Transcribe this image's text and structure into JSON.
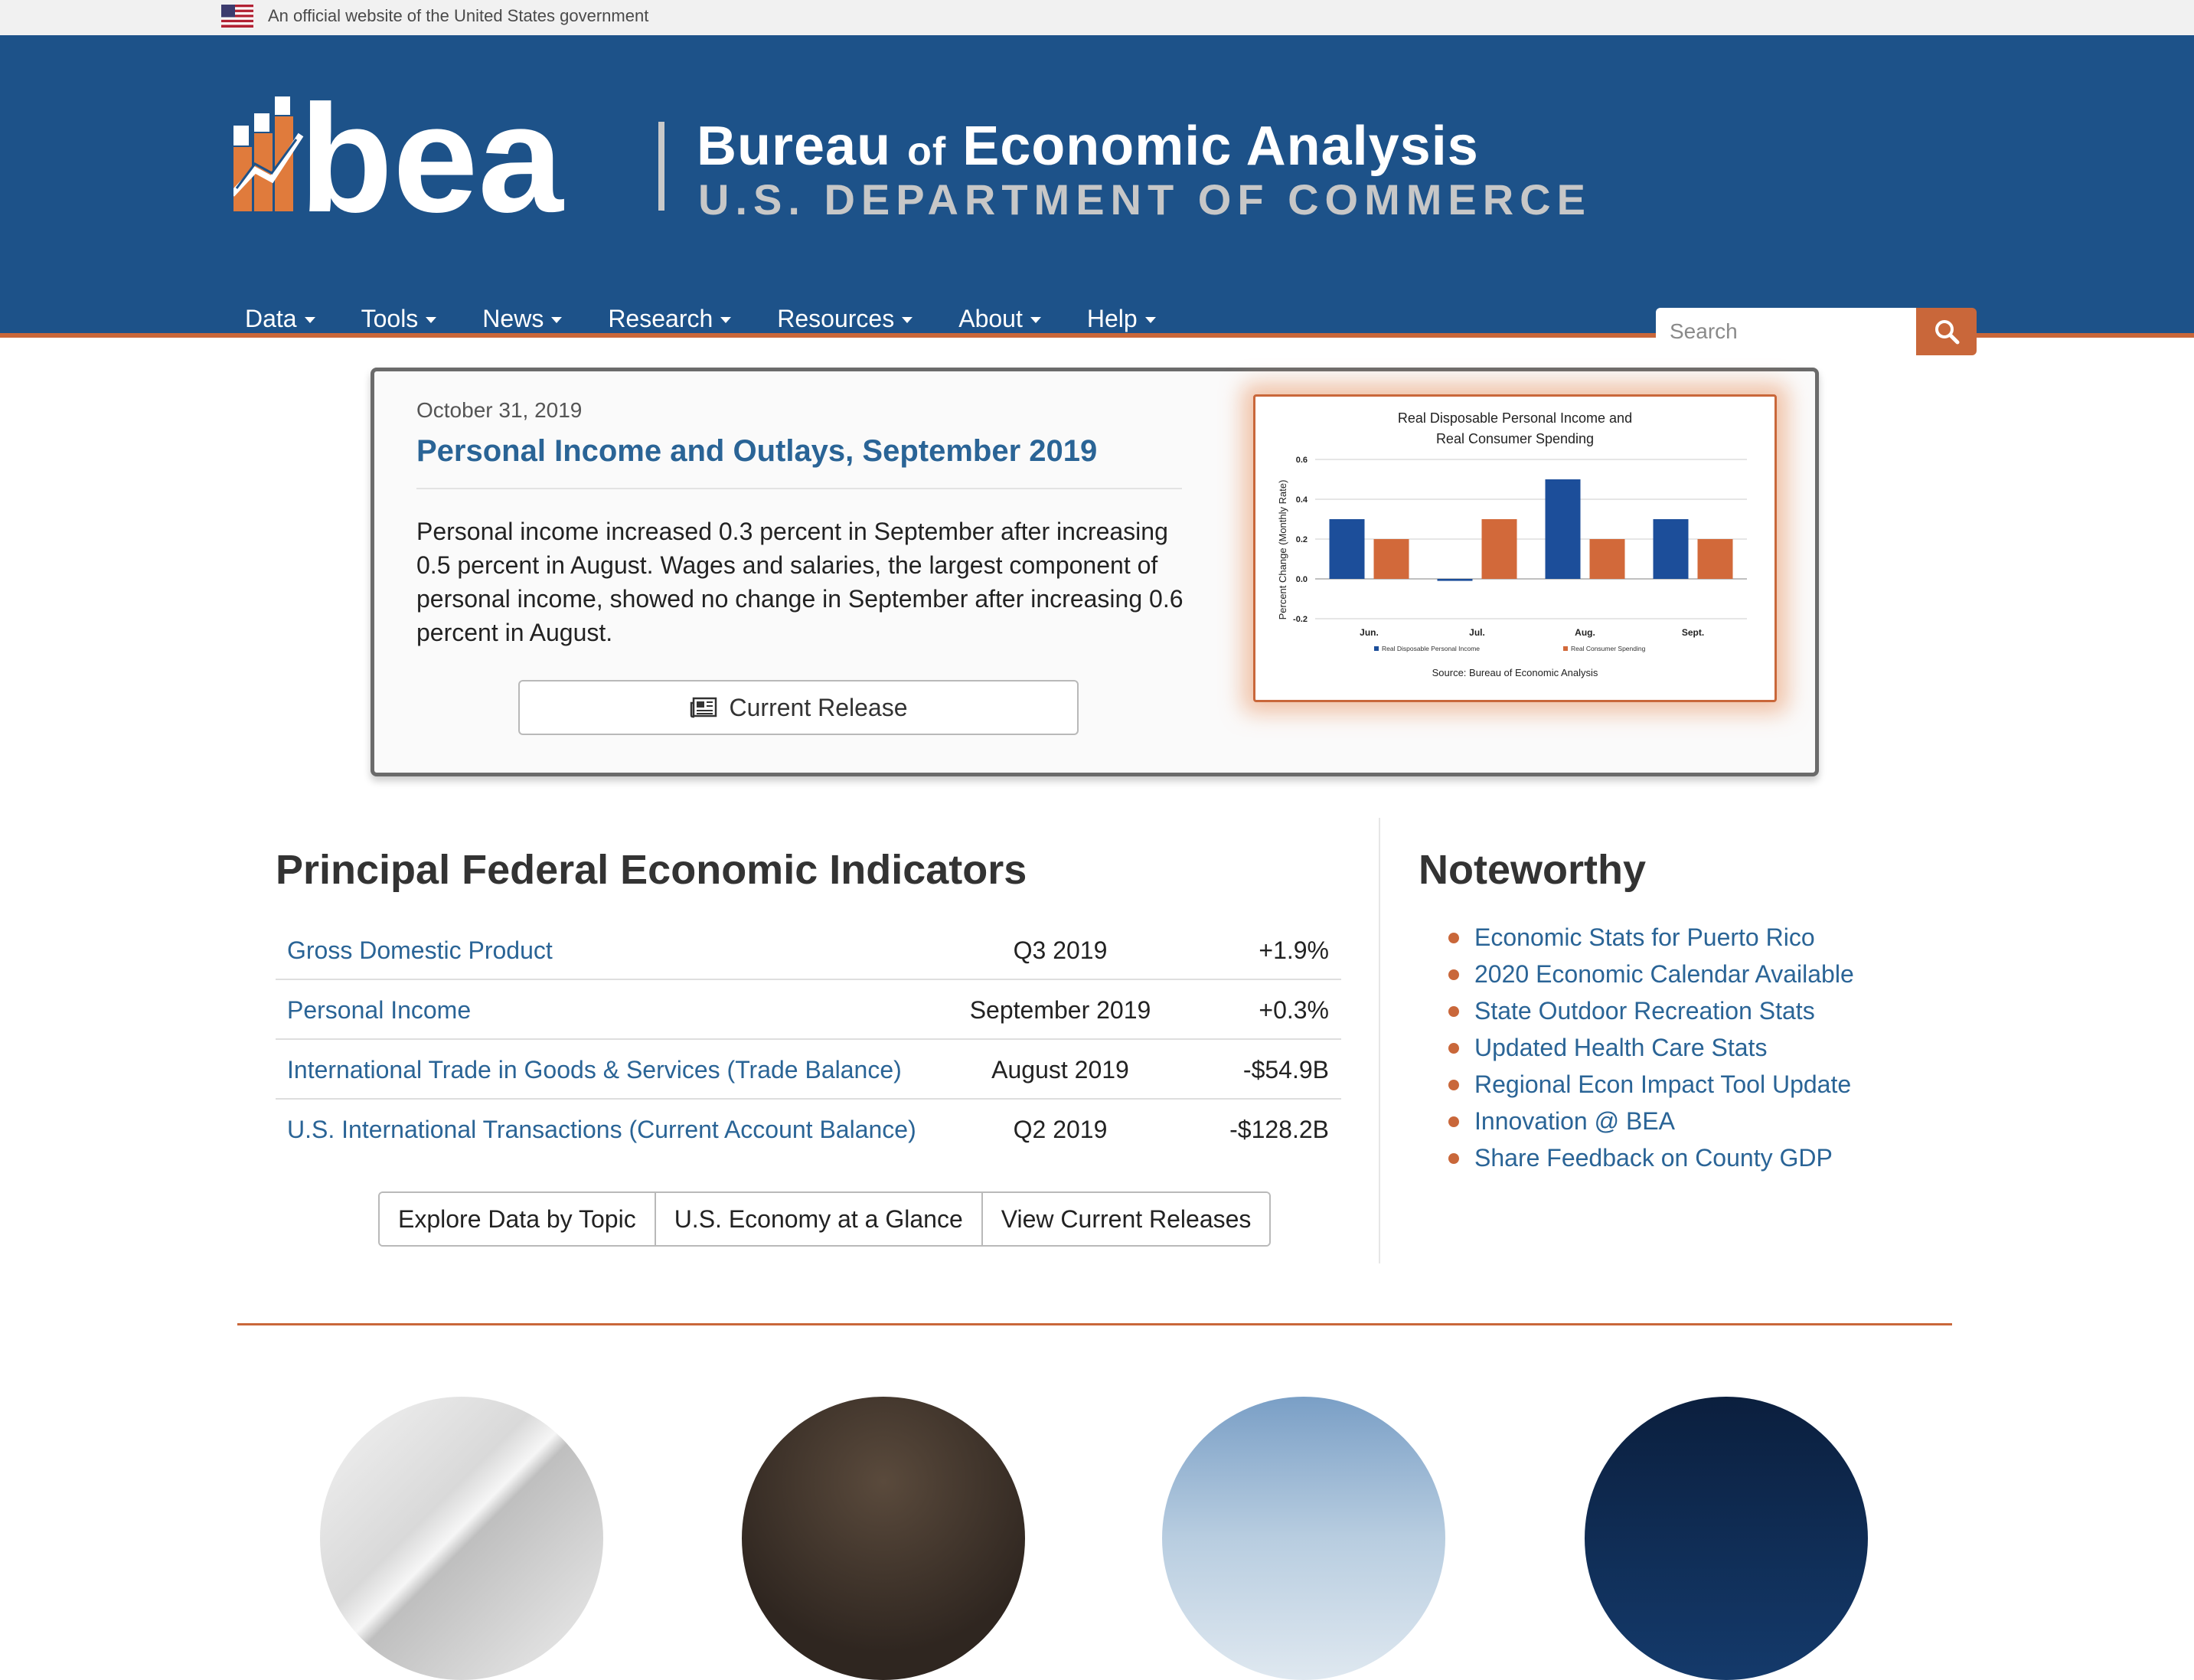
{
  "gov_banner": {
    "text": "An official website of the United States government"
  },
  "header": {
    "logo_text": "bea",
    "title_part1": "Bureau",
    "title_of": "of",
    "title_part2": "Economic Analysis",
    "subtitle": "U.S. DEPARTMENT OF COMMERCE",
    "colors": {
      "header_bg": "#1d5289",
      "accent": "#c9673a"
    }
  },
  "nav": {
    "items": [
      {
        "label": "Data"
      },
      {
        "label": "Tools"
      },
      {
        "label": "News"
      },
      {
        "label": "Research"
      },
      {
        "label": "Resources"
      },
      {
        "label": "About"
      },
      {
        "label": "Help"
      }
    ]
  },
  "search": {
    "placeholder": "Search",
    "icon": "search-icon"
  },
  "feature": {
    "date": "October 31, 2019",
    "title": "Personal Income and Outlays, September 2019",
    "summary": "Personal income increased 0.3 percent in September after increasing 0.5 percent in August. Wages and salaries, the largest component of personal income, showed no change in September after increasing 0.6 percent in August.",
    "button_label": "Current Release",
    "button_icon": "newspaper-icon"
  },
  "chart_data": {
    "type": "bar",
    "title_line1": "Real Disposable Personal Income and",
    "title_line2": "Real Consumer Spending",
    "ylabel": "Percent Change (Monthly Rate)",
    "source": "Source:  Bureau of Economic Analysis",
    "categories": [
      "Jun.",
      "Jul.",
      "Aug.",
      "Sept."
    ],
    "series": [
      {
        "name": "Real Disposable Personal Income",
        "values": [
          0.3,
          -0.01,
          0.5,
          0.3
        ],
        "color": "#1c4e9a"
      },
      {
        "name": "Real Consumer Spending",
        "values": [
          0.2,
          0.3,
          0.2,
          0.2
        ],
        "color": "#d2693a"
      }
    ],
    "yticks": [
      "0.6",
      "0.4",
      "0.2",
      "0.0",
      "-0.2"
    ],
    "ylim": [
      -0.2,
      0.6
    ],
    "grid": true,
    "legend": "bottom"
  },
  "indicators": {
    "title": "Principal Federal Economic Indicators",
    "rows": [
      {
        "name": "Gross Domestic Product",
        "period": "Q3 2019",
        "value": "+1.9%"
      },
      {
        "name": "Personal Income",
        "period": "September 2019",
        "value": "+0.3%"
      },
      {
        "name": "International Trade in Goods & Services (Trade Balance)",
        "period": "August 2019",
        "value": "-$54.9B"
      },
      {
        "name": "U.S. International Transactions (Current Account Balance)",
        "period": "Q2 2019",
        "value": "-$128.2B"
      }
    ],
    "buttons": [
      "Explore Data by Topic",
      "U.S. Economy at a Glance",
      "View Current Releases"
    ]
  },
  "noteworthy": {
    "title": "Noteworthy",
    "items": [
      "Economic Stats for Puerto Rico",
      "2020 Economic Calendar Available",
      "State Outdoor Recreation Stats",
      "Updated Health Care Stats",
      "Regional Econ Impact Tool Update",
      "Innovation @ BEA",
      "Share Feedback on County GDP"
    ]
  }
}
